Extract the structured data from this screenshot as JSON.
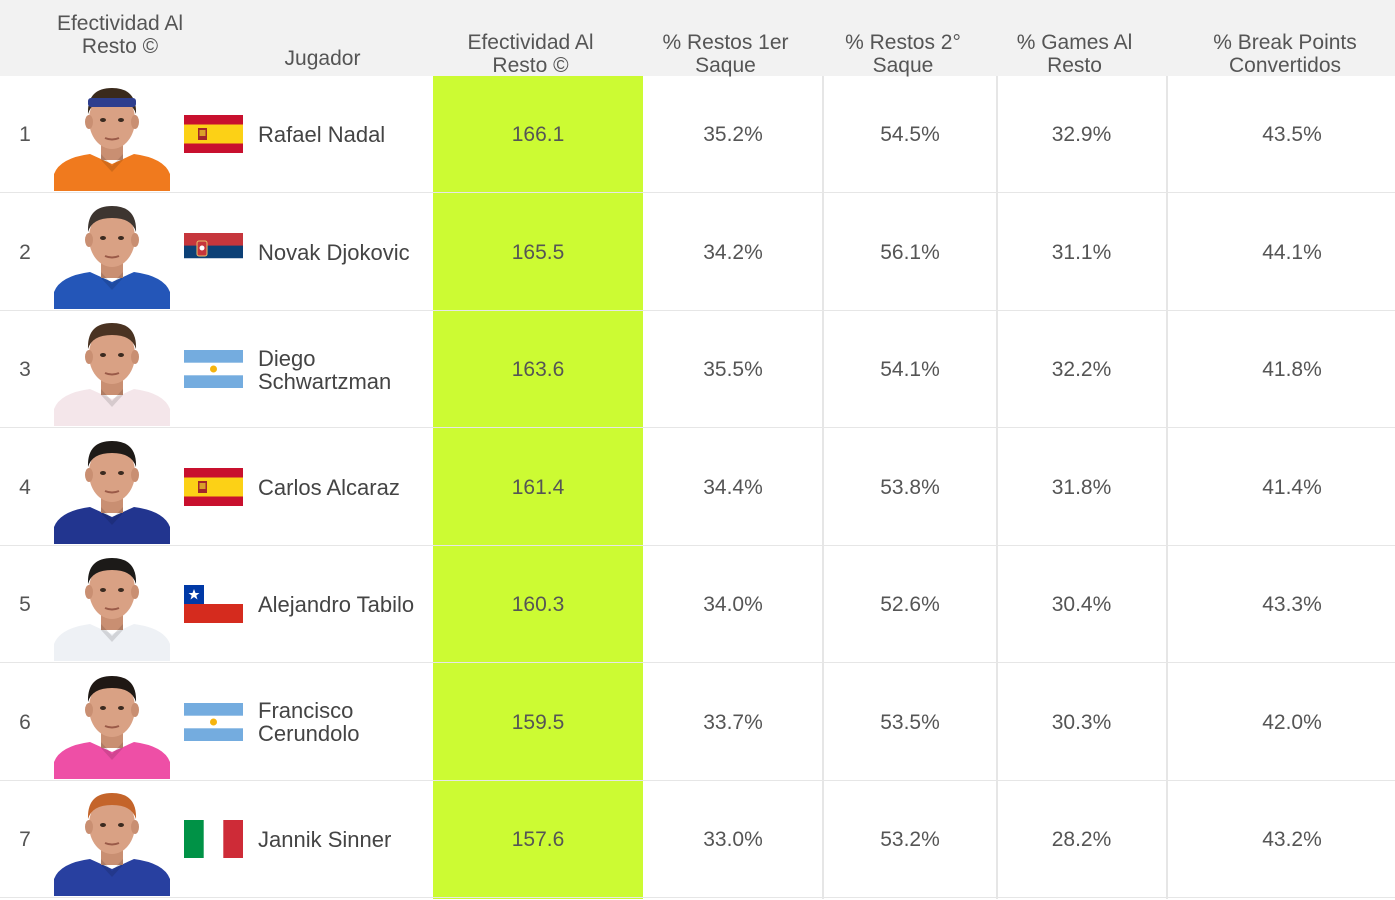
{
  "table": {
    "headers": {
      "rank": "Efectividad Al Resto ©",
      "player": "Jugador",
      "score": "Efectividad Al Resto ©",
      "first_serve": "% Restos 1er Saque",
      "second_serve": "% Restos 2° Saque",
      "games": "% Games Al Resto",
      "break_points": "% Break Points Convertidos"
    },
    "highlight_color": "#ccfb33",
    "rows": [
      {
        "rank": "1",
        "name": "Rafael Nadal",
        "flag": "spain",
        "score": "166.1",
        "first": "35.2%",
        "second": "54.5%",
        "games": "32.9%",
        "bp": "43.5%",
        "shirt": "#f07a1e",
        "hair": "#3a2a1c",
        "band": "#2e3e8e"
      },
      {
        "rank": "2",
        "name": "Novak Djokovic",
        "flag": "serbia",
        "score": "165.5",
        "first": "34.2%",
        "second": "56.1%",
        "games": "31.1%",
        "bp": "44.1%",
        "shirt": "#2456b8",
        "hair": "#3d3530"
      },
      {
        "rank": "3",
        "name": "Diego Schwartzman",
        "flag": "argentina",
        "score": "163.6",
        "first": "35.5%",
        "second": "54.1%",
        "games": "32.2%",
        "bp": "41.8%",
        "shirt": "#f4e6ea",
        "hair": "#4a3322"
      },
      {
        "rank": "4",
        "name": "Carlos Alcaraz",
        "flag": "spain",
        "score": "161.4",
        "first": "34.4%",
        "second": "53.8%",
        "games": "31.8%",
        "bp": "41.4%",
        "shirt": "#22358f",
        "hair": "#1e1a17"
      },
      {
        "rank": "5",
        "name": "Alejandro Tabilo",
        "flag": "chile",
        "score": "160.3",
        "first": "34.0%",
        "second": "52.6%",
        "games": "30.4%",
        "bp": "43.3%",
        "shirt": "#eef1f5",
        "hair": "#1c1a18"
      },
      {
        "rank": "6",
        "name": "Francisco Cerundolo",
        "flag": "argentina",
        "score": "159.5",
        "first": "33.7%",
        "second": "53.5%",
        "games": "30.3%",
        "bp": "42.0%",
        "shirt": "#ee4fa6",
        "hair": "#1f1814"
      },
      {
        "rank": "7",
        "name": "Jannik Sinner",
        "flag": "italy",
        "score": "157.6",
        "first": "33.0%",
        "second": "53.2%",
        "games": "28.2%",
        "bp": "43.2%",
        "shirt": "#2840a0",
        "hair": "#c4642a"
      }
    ]
  }
}
